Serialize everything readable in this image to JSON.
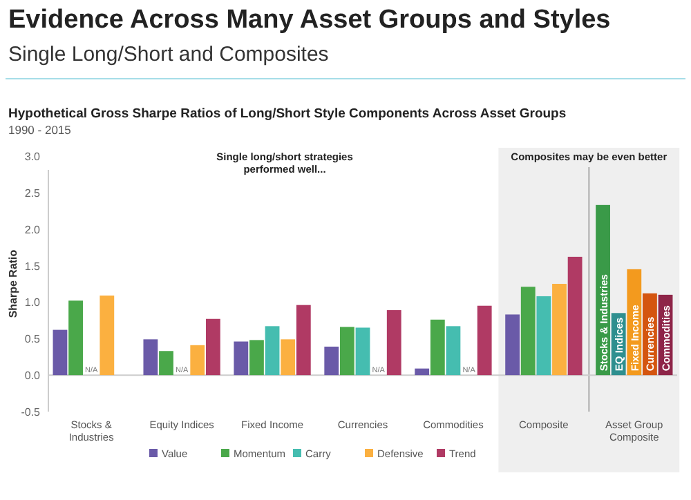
{
  "chart_data": {
    "type": "bar",
    "title": "Evidence Across Many Asset Groups and Styles",
    "subtitle": "Single Long/Short and Composites",
    "ylabel": "Sharpe Ratio",
    "annotations": [
      "Hypothetical Gross Sharpe Ratios of Long/Short Style Components Across Asset Groups",
      "1990 - 2015",
      "Single long/short strategies performed well..."
    ],
    "categories": [
      "Stocks & Industries",
      "Equity Indices",
      "Fixed Income",
      "Currencies",
      "Commodities",
      "Composite",
      "Asset Group Composite"
    ],
    "series": [
      {
        "name": "Value",
        "color": "#6a5aa8",
        "values": [
          0.62,
          0.49,
          0.46,
          0.39,
          0.09,
          0.83,
          null
        ]
      },
      {
        "name": "Momentum",
        "color": "#4aa84a",
        "values": [
          1.02,
          0.33,
          0.48,
          0.66,
          0.76,
          1.21,
          null
        ]
      },
      {
        "name": "Carry",
        "color": "#45bdb0",
        "values": [
          null,
          null,
          0.67,
          0.65,
          0.67,
          1.08,
          null
        ],
        "value_labels": [
          "N/A",
          "N/A",
          null,
          null,
          null,
          null,
          null
        ]
      },
      {
        "name": "Defensive",
        "color": "#fbb040",
        "values": [
          1.09,
          0.41,
          0.49,
          null,
          null,
          1.25,
          null
        ],
        "value_labels": [
          null,
          null,
          null,
          "N/A",
          "N/A",
          null,
          null
        ]
      },
      {
        "name": "Trend",
        "color": "#b03a64",
        "values": [
          null,
          0.77,
          0.96,
          0.89,
          0.95,
          1.62,
          null
        ]
      },
      {
        "name": "Stocks & Industries",
        "color": "#3a9a48",
        "values": [
          null,
          null,
          null,
          null,
          null,
          null,
          2.33
        ]
      },
      {
        "name": "EQ Indices",
        "color": "#2e8f8f",
        "values": [
          null,
          null,
          null,
          null,
          null,
          null,
          0.85
        ]
      },
      {
        "name": "Fixed Income",
        "color": "#f39a1e",
        "values": [
          null,
          null,
          null,
          null,
          null,
          null,
          1.45
        ]
      },
      {
        "name": "Currencies",
        "color": "#d4550f",
        "values": [
          null,
          null,
          null,
          null,
          null,
          null,
          1.12
        ]
      },
      {
        "name": "Commodities",
        "color": "#8e2548",
        "values": [
          null,
          null,
          null,
          null,
          null,
          null,
          1.1
        ]
      }
    ],
    "bands": [
      {
        "axis": "x",
        "from": "Composite",
        "to": "Asset Group Composite",
        "label": "Composites may be even better",
        "color": "#efefef"
      }
    ],
    "ref_lines": [
      {
        "axis": "x",
        "value": "Asset Group Composite",
        "color": "#999999"
      }
    ],
    "ylim": [
      -0.5,
      3.0
    ],
    "yticks": [
      -0.5,
      {
        "value": 0,
        "label": "0.0"
      },
      0.5,
      {
        "value": 1,
        "label": "1.0"
      },
      1.5,
      {
        "value": 2,
        "label": "2.0"
      },
      2.5,
      {
        "value": 3,
        "label": "3.0"
      }
    ],
    "legend": "bottom"
  }
}
